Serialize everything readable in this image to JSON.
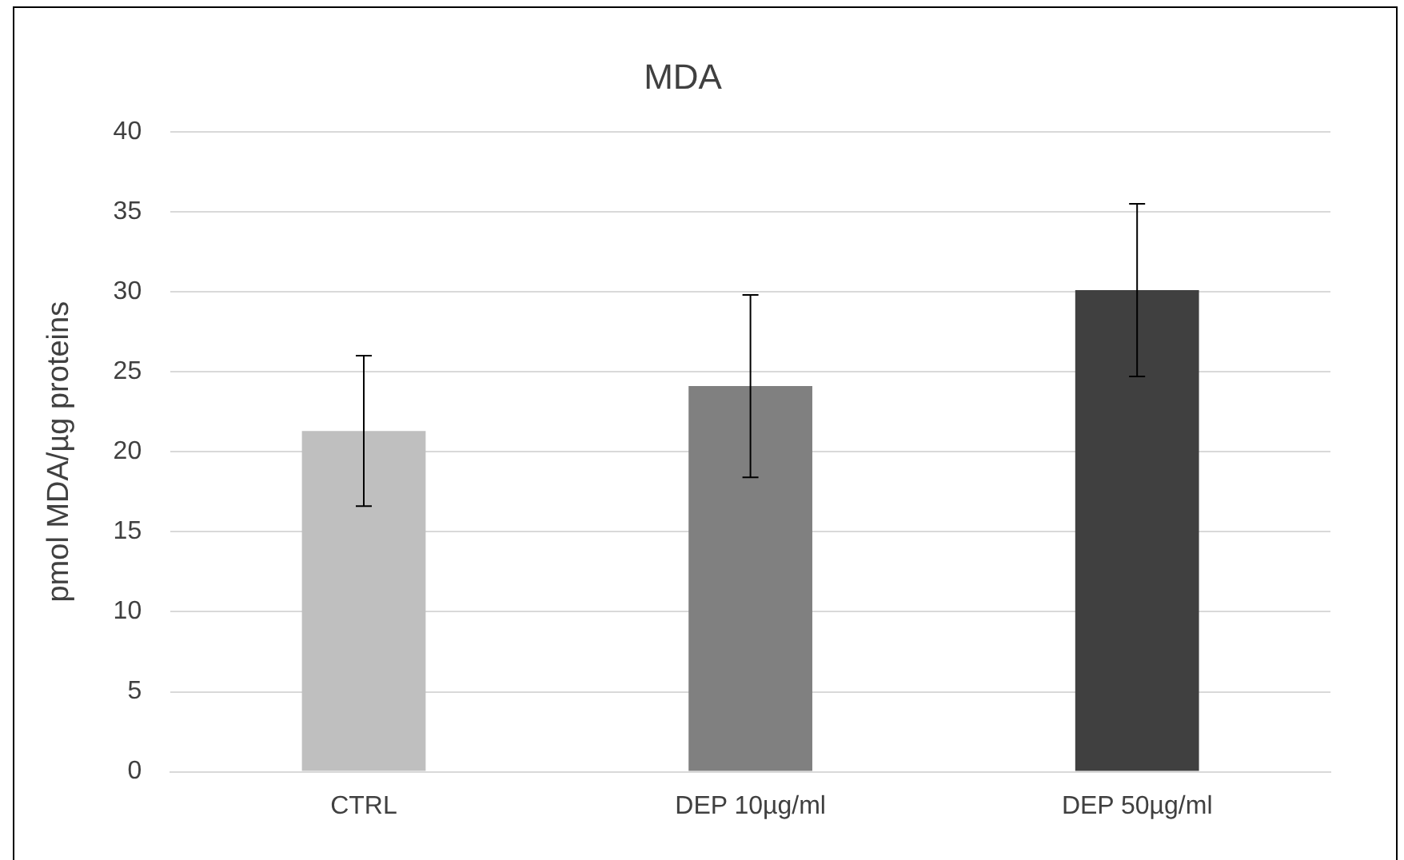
{
  "chart_data": {
    "type": "bar",
    "title": "MDA",
    "ylabel": "pmol MDA/µg proteins",
    "categories": [
      "CTRL",
      "DEP 10µg/ml",
      "DEP 50µg/ml"
    ],
    "values": [
      21.3,
      24.1,
      30.1
    ],
    "colors": [
      "#bfbfbf",
      "#808080",
      "#404040"
    ],
    "errors": [
      4.7,
      5.7,
      5.4
    ],
    "ylim": [
      0,
      40
    ],
    "yticks": [
      0,
      5,
      10,
      15,
      20,
      25,
      30,
      35,
      40
    ],
    "grid": "y"
  }
}
